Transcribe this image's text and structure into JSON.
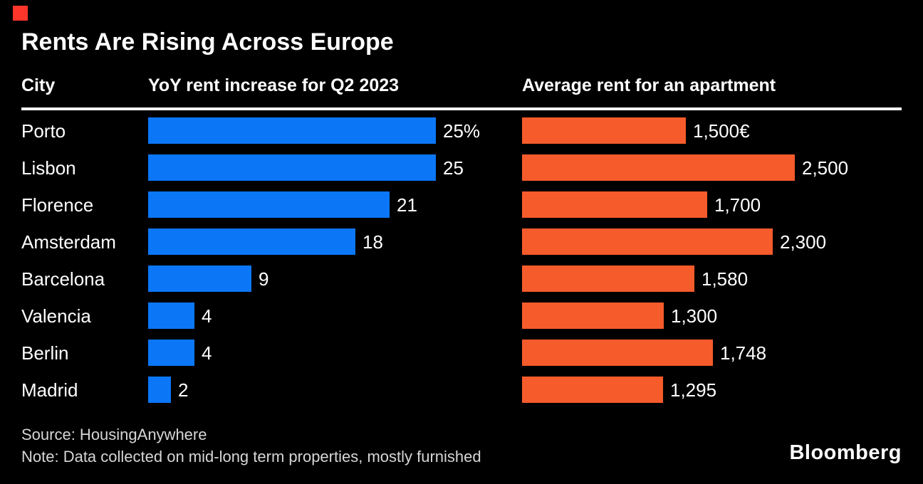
{
  "brand": {
    "mark_color": "#fe352a",
    "logo_text": "Bloomberg"
  },
  "title": "Rents Are Rising Across Europe",
  "columns": {
    "city": "City",
    "yoy": "YoY rent increase for Q2 2023",
    "avg": "Average rent for an apartment"
  },
  "chart_data": {
    "type": "bar",
    "orientation": "horizontal",
    "title": "Rents Are Rising Across Europe",
    "categories": [
      "Porto",
      "Lisbon",
      "Florence",
      "Amsterdam",
      "Barcelona",
      "Valencia",
      "Berlin",
      "Madrid"
    ],
    "series": [
      {
        "name": "YoY rent increase for Q2 2023",
        "unit": "%",
        "values": [
          25,
          25,
          21,
          18,
          9,
          4,
          4,
          2
        ],
        "labels": [
          "25%",
          "25",
          "21",
          "18",
          "9",
          "4",
          "4",
          "2"
        ],
        "color": "#0b77f7",
        "axis_max": 25
      },
      {
        "name": "Average rent for an apartment",
        "unit": "EUR",
        "values": [
          1500,
          2500,
          1700,
          2300,
          1580,
          1300,
          1748,
          1295
        ],
        "labels": [
          "1,500€",
          "2,500",
          "1,700",
          "2,300",
          "1,580",
          "1,300",
          "1,748",
          "1,295"
        ],
        "color": "#f65b2b",
        "axis_max": 2500
      }
    ],
    "value_labels": "end-of-bar",
    "grid": false,
    "legend": "column-headers",
    "background": "#000000"
  },
  "footer": {
    "source": "Source: HousingAnywhere",
    "note": "Note: Data collected on mid-long term properties, mostly furnished",
    "logo": "Bloomberg"
  }
}
